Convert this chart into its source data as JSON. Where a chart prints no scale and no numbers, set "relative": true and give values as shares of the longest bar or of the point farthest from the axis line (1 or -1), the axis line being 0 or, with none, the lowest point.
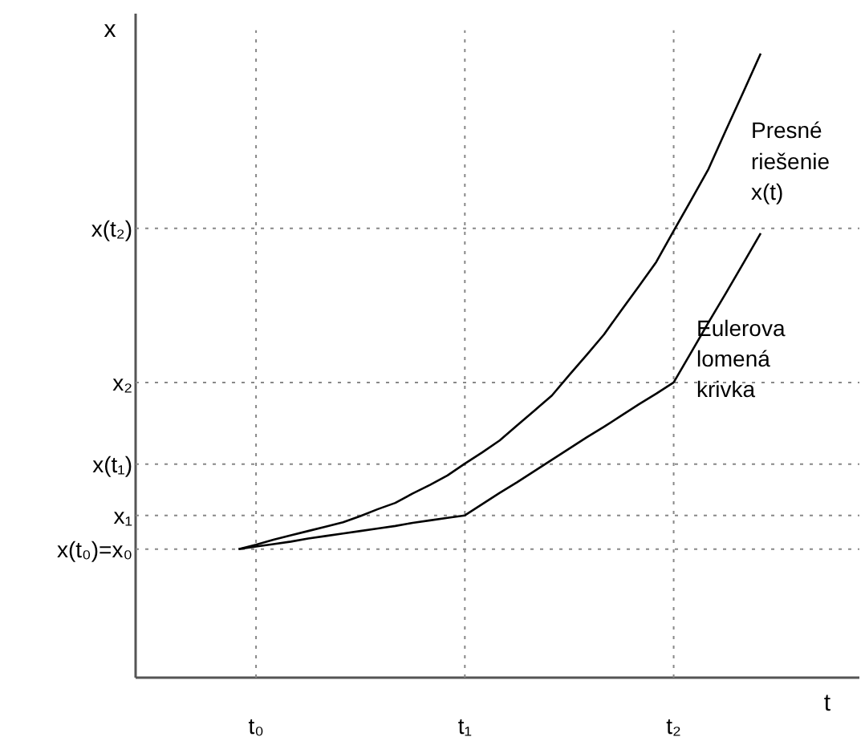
{
  "chart_data": {
    "type": "line",
    "relative": true,
    "xlabel": "t",
    "ylabel": "x",
    "categories": [
      null,
      "t₀",
      null,
      null,
      null,
      null,
      null,
      null,
      null,
      null,
      null,
      null,
      null,
      "t₁",
      null,
      null,
      null,
      null,
      null,
      null,
      null,
      null,
      null,
      null,
      null,
      "t₂",
      null,
      null,
      null,
      null,
      null
    ],
    "grid": "x",
    "ref_lines": [
      {
        "axis": "y",
        "value": 0.206,
        "label": "x(t₀)=x₀",
        "line_style": "dotted",
        "color": "#888888"
      },
      {
        "axis": "y",
        "value": 0.26,
        "label": "x₁",
        "line_style": "dotted",
        "color": "#888888"
      },
      {
        "axis": "y",
        "value": 0.342,
        "label": "x(t₁)",
        "line_style": "dotted",
        "color": "#888888"
      },
      {
        "axis": "y",
        "value": 0.473,
        "label": "x₂",
        "line_style": "dotted",
        "color": "#888888"
      },
      {
        "axis": "y",
        "value": 0.72,
        "label": "x(t₂)",
        "line_style": "dotted",
        "color": "#888888"
      }
    ],
    "line_style": "solid",
    "series": [
      {
        "name": "Presné\nriešenie\nx(t)",
        "color": "#000000",
        "values": [
          0.206,
          0.213,
          0.221,
          0.228,
          0.235,
          0.242,
          0.249,
          0.259,
          0.27,
          0.28,
          0.295,
          0.309,
          0.324,
          0.343,
          0.361,
          0.38,
          0.404,
          0.428,
          0.452,
          0.485,
          0.517,
          0.55,
          0.589,
          0.627,
          0.666,
          0.716,
          0.765,
          0.815,
          0.877,
          0.938,
          1.0
        ]
      },
      {
        "name": "Eulerova\nlomená\nkrivka",
        "color": "#000000",
        "values": [
          0.206,
          0.21,
          0.214,
          0.218,
          0.223,
          0.227,
          0.231,
          0.235,
          0.239,
          0.243,
          0.248,
          0.252,
          0.256,
          0.26,
          0.278,
          0.296,
          0.313,
          0.331,
          0.349,
          0.367,
          0.385,
          0.402,
          0.42,
          0.438,
          0.455,
          0.473,
          0.521,
          0.569,
          0.616,
          0.664,
          0.712
        ]
      }
    ]
  }
}
